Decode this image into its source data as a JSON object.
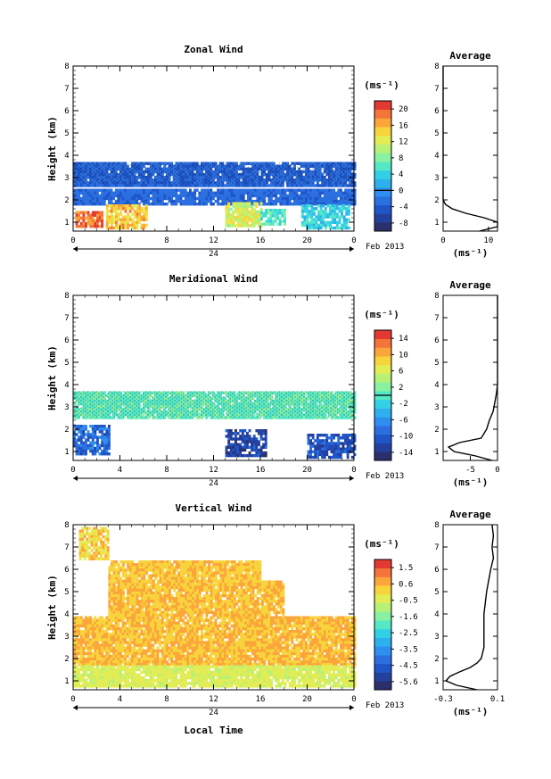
{
  "figure": {
    "date_label": "Feb 2013",
    "day_label": "24",
    "xlabel": "Local Time",
    "profile_title": "Average",
    "unit": "(ms⁻¹)",
    "ylabel": "Height (km)"
  },
  "chart_data": [
    {
      "type": "heatmap",
      "panel": "zonal",
      "title": "Zonal Wind",
      "ylabel": "Height (km)",
      "xlabel": "",
      "x_ticks": [
        "0",
        "4",
        "8",
        "12",
        "16",
        "20",
        "0"
      ],
      "xlim": [
        0,
        24
      ],
      "y_ticks": [
        "1",
        "2",
        "3",
        "4",
        "5",
        "6",
        "7",
        "8"
      ],
      "ylim": [
        0.6,
        8
      ],
      "colorbar": {
        "label": "(ms⁻¹)",
        "ticks": [
          "-8",
          "-4",
          "0",
          "4",
          "8",
          "12",
          "16",
          "20"
        ],
        "range": [
          -10,
          22
        ],
        "contour_at": 0
      },
      "features": [
        {
          "field": "band",
          "x": [
            0,
            24
          ],
          "y": [
            2.7,
            3.7
          ],
          "value": -3.5
        },
        {
          "field": "band",
          "x": [
            0,
            24
          ],
          "y": [
            1.8,
            2.5
          ],
          "value": -3.0
        },
        {
          "field": "patch",
          "x": [
            0.2,
            2.5
          ],
          "y": [
            0.8,
            1.5
          ],
          "value": 19
        },
        {
          "field": "patch",
          "x": [
            2.8,
            6.2
          ],
          "y": [
            0.8,
            1.8
          ],
          "value": 15
        },
        {
          "field": "patch",
          "x": [
            13,
            16
          ],
          "y": [
            0.8,
            1.9
          ],
          "value": 12
        },
        {
          "field": "patch",
          "x": [
            16,
            18
          ],
          "y": [
            0.9,
            1.6
          ],
          "value": 6
        },
        {
          "field": "patch",
          "x": [
            19.5,
            23.5
          ],
          "y": [
            0.8,
            1.8
          ],
          "value": 4
        }
      ],
      "profile": {
        "xlim": [
          0,
          12
        ],
        "x_ticks": [
          "0",
          "10"
        ],
        "xlabel": "(ms⁻¹)",
        "height": [
          0.6,
          0.8,
          1.0,
          1.2,
          1.4,
          1.6,
          1.8,
          2.0,
          2.2,
          2.4,
          2.6,
          3.0,
          4.0,
          5.0,
          6.0,
          7.0,
          8.0
        ],
        "value": [
          8,
          12,
          13,
          9,
          5,
          2,
          0.5,
          0,
          -0.5,
          -1,
          -0.5,
          0,
          0,
          0,
          0,
          0,
          0
        ]
      }
    },
    {
      "type": "heatmap",
      "panel": "meridional",
      "title": "Meridional Wind",
      "ylabel": "Height (km)",
      "xlabel": "",
      "x_ticks": [
        "0",
        "4",
        "8",
        "12",
        "16",
        "20",
        "0"
      ],
      "xlim": [
        0,
        24
      ],
      "y_ticks": [
        "1",
        "2",
        "3",
        "4",
        "5",
        "6",
        "7",
        "8"
      ],
      "ylim": [
        0.6,
        8
      ],
      "colorbar": {
        "label": "(ms⁻¹)",
        "ticks": [
          "-14",
          "-10",
          "-6",
          "-2",
          "2",
          "6",
          "10",
          "14"
        ],
        "range": [
          -16,
          16
        ],
        "contour_at": 0
      },
      "features": [
        {
          "field": "band",
          "x": [
            0,
            24
          ],
          "y": [
            2.5,
            3.7
          ],
          "value": 0.5
        },
        {
          "field": "patch",
          "x": [
            0,
            3
          ],
          "y": [
            0.9,
            2.2
          ],
          "value": -9
        },
        {
          "field": "patch",
          "x": [
            13,
            16.5
          ],
          "y": [
            0.8,
            2.0
          ],
          "value": -12
        },
        {
          "field": "patch",
          "x": [
            20,
            24
          ],
          "y": [
            0.8,
            1.8
          ],
          "value": -11
        }
      ],
      "profile": {
        "xlim": [
          -10,
          0
        ],
        "x_ticks": [
          "-5",
          "0"
        ],
        "xlabel": "(ms⁻¹)",
        "height": [
          0.6,
          0.8,
          1.0,
          1.2,
          1.4,
          1.6,
          2.0,
          2.4,
          2.8,
          3.2,
          3.6,
          4.0,
          5.0,
          6.0,
          7.0,
          8.0
        ],
        "value": [
          -1,
          -4,
          -8,
          -9,
          -7,
          -3,
          -2,
          -1.5,
          -0.8,
          -0.5,
          -0.2,
          0,
          0,
          0,
          0,
          0
        ]
      }
    },
    {
      "type": "heatmap",
      "panel": "vertical",
      "title": "Vertical Wind",
      "ylabel": "Height (km)",
      "xlabel": "Local Time",
      "x_ticks": [
        "0",
        "4",
        "8",
        "12",
        "16",
        "20",
        "0"
      ],
      "xlim": [
        0,
        24
      ],
      "y_ticks": [
        "1",
        "2",
        "3",
        "4",
        "5",
        "6",
        "7",
        "8"
      ],
      "ylim": [
        0.6,
        8
      ],
      "colorbar": {
        "label": "(ms⁻¹)",
        "ticks": [
          "-5.6",
          "-4.5",
          "-3.5",
          "-2.5",
          "-1.6",
          "-0.5",
          "0.6",
          "1.5"
        ],
        "range": [
          -6,
          2
        ]
      },
      "features": [
        {
          "field": "band",
          "x": [
            0,
            24
          ],
          "y": [
            1.7,
            3.9
          ],
          "value": 0.4
        },
        {
          "field": "band",
          "x": [
            0,
            24
          ],
          "y": [
            0.8,
            1.7
          ],
          "value": -0.5
        },
        {
          "field": "band",
          "x": [
            3,
            18
          ],
          "y": [
            3.9,
            5.5
          ],
          "value": 0.4
        },
        {
          "field": "band",
          "x": [
            3,
            16
          ],
          "y": [
            5.5,
            6.4
          ],
          "value": 0.3
        },
        {
          "field": "patch",
          "x": [
            0.5,
            3
          ],
          "y": [
            6.5,
            7.9
          ],
          "value": 0.1
        }
      ],
      "profile": {
        "xlim": [
          -0.3,
          0.1
        ],
        "x_ticks": [
          "-0.3",
          "0.1"
        ],
        "xlabel": "(ms⁻¹)",
        "height": [
          0.6,
          0.8,
          1.0,
          1.2,
          1.4,
          1.6,
          1.8,
          2.0,
          2.5,
          3.0,
          4.0,
          5.0,
          6.0,
          6.5,
          7.0,
          7.5,
          8.0
        ],
        "value": [
          -0.05,
          -0.2,
          -0.28,
          -0.25,
          -0.18,
          -0.1,
          -0.05,
          -0.02,
          0.0,
          0.0,
          0.0,
          0.02,
          0.05,
          0.07,
          0.06,
          0.07,
          0.06
        ]
      }
    }
  ]
}
